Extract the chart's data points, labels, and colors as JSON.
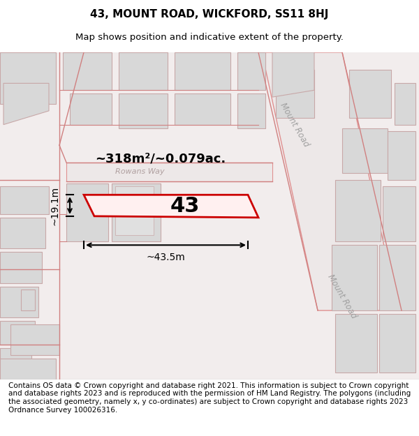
{
  "title_line1": "43, MOUNT ROAD, WICKFORD, SS11 8HJ",
  "title_line2": "Map shows position and indicative extent of the property.",
  "footer_text": "Contains OS data © Crown copyright and database right 2021. This information is subject to Crown copyright and database rights 2023 and is reproduced with the permission of HM Land Registry. The polygons (including the associated geometry, namely x, y co-ordinates) are subject to Crown copyright and database rights 2023 Ordnance Survey 100026316.",
  "bg_color": "#f5f5f5",
  "map_bg": "#f0f0f0",
  "road_fill": "#e8e8e8",
  "plot_outline_color": "#cc0000",
  "plot_label": "43",
  "area_label": "~318m²/~0.079ac.",
  "width_label": "~43.5m",
  "height_label": "~19.1m",
  "road_label1": "Mount Road",
  "road_label2": "Mount Road",
  "street_label": "Rowans Way",
  "title_fontsize": 11,
  "footer_fontsize": 7.5,
  "map_extent": [
    0,
    600,
    60,
    540
  ]
}
